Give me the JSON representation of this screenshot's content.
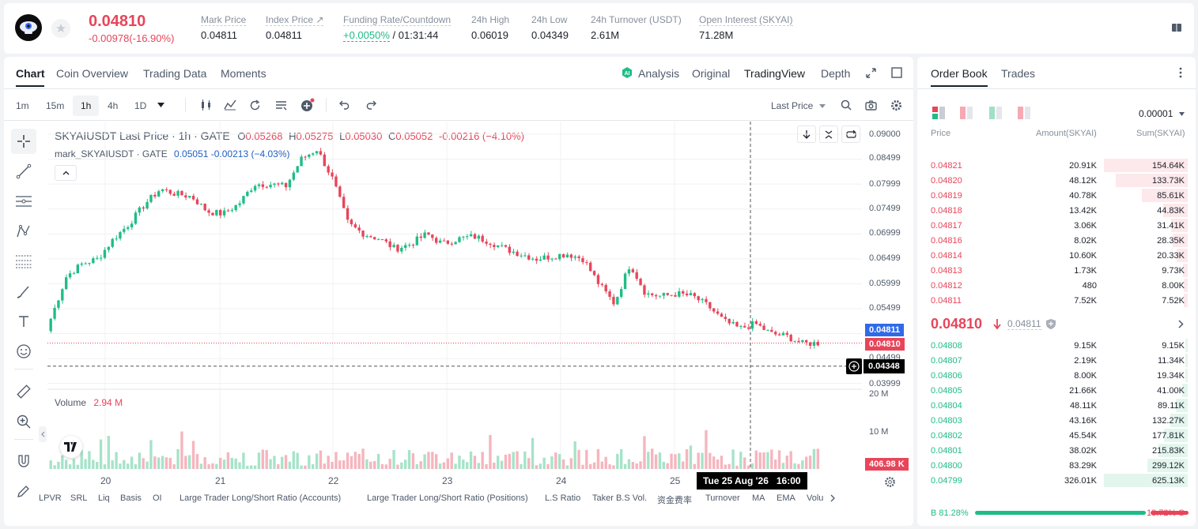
{
  "ticker": {
    "last_price": "0.04810",
    "change": "-0.00978(-16.90%)",
    "stats": [
      {
        "label": "Mark Price",
        "value": "0.04811"
      },
      {
        "label": "Index Price ↗",
        "value": "0.04811"
      },
      {
        "label": "Funding Rate/Countdown",
        "value_green": "+0.0050%",
        "value": "/ 01:31:44"
      },
      {
        "label": "24h High",
        "value": "0.06019"
      },
      {
        "label": "24h Low",
        "value": "0.04349"
      },
      {
        "label": "24h Turnover (USDT)",
        "value": "2.61M"
      },
      {
        "label": "Open Interest (SKYAI)",
        "value": "71.28M"
      }
    ]
  },
  "chart_tabs": [
    "Chart",
    "Coin Overview",
    "Trading Data",
    "Moments"
  ],
  "view_modes": [
    "Analysis",
    "Original",
    "TradingView",
    "Depth"
  ],
  "intervals": [
    "1m",
    "15m",
    "1h",
    "4h",
    "1D"
  ],
  "price_source": "Last Price",
  "legend": {
    "main_title": "SKYAIUSDT Last Price · 1h · GATE",
    "o_label": "O",
    "o": "0.05268",
    "h_label": "H",
    "h": "0.05275",
    "l_label": "L",
    "l": "0.05030",
    "c_label": "C",
    "c": "0.05052",
    "chg": "-0.00216 (−4.10%)",
    "mark_title": "mark_SKYAIUSDT · GATE",
    "mark_value": "0.05051 -0.00213 (−4.03%)"
  },
  "price_axis": {
    "ticks": [
      "0.09000",
      "0.08499",
      "0.07999",
      "0.07499",
      "0.06999",
      "0.06499",
      "0.05999",
      "0.05499",
      "0.04499",
      "0.03999"
    ],
    "mark_tag": "0.04811",
    "last_tag": "0.04810",
    "cursor_tag": "0.04348"
  },
  "volume": {
    "label": "Volume",
    "value": "2.94 M",
    "ticks": [
      "20 M",
      "10 M"
    ],
    "tag": "406.98 K"
  },
  "time_axis": {
    "ticks": [
      "20",
      "21",
      "22",
      "23",
      "24",
      "25"
    ],
    "cursor_label": "Tue 25 Aug '26   16:00"
  },
  "indicators": [
    "LPVR",
    "SRL",
    "Liq",
    "Basis",
    "OI",
    "Large Trader Long/Short Ratio (Accounts)",
    "Large Trader Long/Short Ratio (Positions)",
    "L.S Ratio",
    "Taker B.S Vol.",
    "资金费率",
    "Turnover",
    "MA",
    "EMA",
    "Volu"
  ],
  "chart_data": {
    "type": "candlestick",
    "symbol": "SKYAIUSDT",
    "interval": "1h",
    "x_labels": [
      "20",
      "21",
      "22",
      "23",
      "24",
      "25"
    ],
    "ylim": [
      0.039,
      0.09
    ],
    "approx_closes": [
      0.053,
      0.0615,
      0.064,
      0.065,
      0.069,
      0.072,
      0.076,
      0.079,
      0.078,
      0.0775,
      0.0745,
      0.074,
      0.076,
      0.08,
      0.08,
      0.0795,
      0.085,
      0.087,
      0.081,
      0.072,
      0.07,
      0.069,
      0.067,
      0.068,
      0.07,
      0.068,
      0.069,
      0.0695,
      0.0685,
      0.067,
      0.066,
      0.065,
      0.0655,
      0.066,
      0.065,
      0.06,
      0.056,
      0.064,
      0.058,
      0.0575,
      0.058,
      0.0575,
      0.0555,
      0.0525,
      0.051,
      0.052,
      0.05,
      0.0495,
      0.048,
      0.0481
    ]
  },
  "order_book": {
    "tabs": [
      "Order Book",
      "Trades"
    ],
    "precision": "0.00001",
    "headers": {
      "price": "Price",
      "amount": "Amount(SKYAI)",
      "sum": "Sum(SKYAI)"
    },
    "asks": [
      {
        "price": "0.04821",
        "amount": "20.91K",
        "sum": "154.64K",
        "depth": 1.0
      },
      {
        "price": "0.04820",
        "amount": "48.12K",
        "sum": "133.73K",
        "depth": 0.86
      },
      {
        "price": "0.04819",
        "amount": "40.78K",
        "sum": "85.61K",
        "depth": 0.55
      },
      {
        "price": "0.04818",
        "amount": "13.42K",
        "sum": "44.83K",
        "depth": 0.29
      },
      {
        "price": "0.04817",
        "amount": "3.06K",
        "sum": "31.41K",
        "depth": 0.2
      },
      {
        "price": "0.04816",
        "amount": "8.02K",
        "sum": "28.35K",
        "depth": 0.18
      },
      {
        "price": "0.04814",
        "amount": "10.60K",
        "sum": "20.33K",
        "depth": 0.13
      },
      {
        "price": "0.04813",
        "amount": "1.73K",
        "sum": "9.73K",
        "depth": 0.06
      },
      {
        "price": "0.04812",
        "amount": "480",
        "sum": "8.00K",
        "depth": 0.05
      },
      {
        "price": "0.04811",
        "amount": "7.52K",
        "sum": "7.52K",
        "depth": 0.05
      }
    ],
    "mid_price": "0.04810",
    "mid_mark": "0.04811",
    "bids": [
      {
        "price": "0.04808",
        "amount": "9.15K",
        "sum": "9.15K",
        "depth": 0.015
      },
      {
        "price": "0.04807",
        "amount": "2.19K",
        "sum": "11.34K",
        "depth": 0.018
      },
      {
        "price": "0.04806",
        "amount": "8.00K",
        "sum": "19.34K",
        "depth": 0.031
      },
      {
        "price": "0.04805",
        "amount": "21.66K",
        "sum": "41.00K",
        "depth": 0.066
      },
      {
        "price": "0.04804",
        "amount": "48.11K",
        "sum": "89.11K",
        "depth": 0.142
      },
      {
        "price": "0.04803",
        "amount": "43.16K",
        "sum": "132.27K",
        "depth": 0.21
      },
      {
        "price": "0.04802",
        "amount": "45.54K",
        "sum": "177.81K",
        "depth": 0.28
      },
      {
        "price": "0.04801",
        "amount": "38.02K",
        "sum": "215.83K",
        "depth": 0.35
      },
      {
        "price": "0.04800",
        "amount": "83.29K",
        "sum": "299.12K",
        "depth": 0.48
      },
      {
        "price": "0.04799",
        "amount": "326.01K",
        "sum": "625.13K",
        "depth": 1.0
      }
    ],
    "buy_pct": "B 81.28%",
    "sell_pct": "18.72% S",
    "buy_ratio": 0.8128
  },
  "colors": {
    "up": "#1fbd85",
    "down": "#e8455a",
    "accent": "#1d2129"
  }
}
